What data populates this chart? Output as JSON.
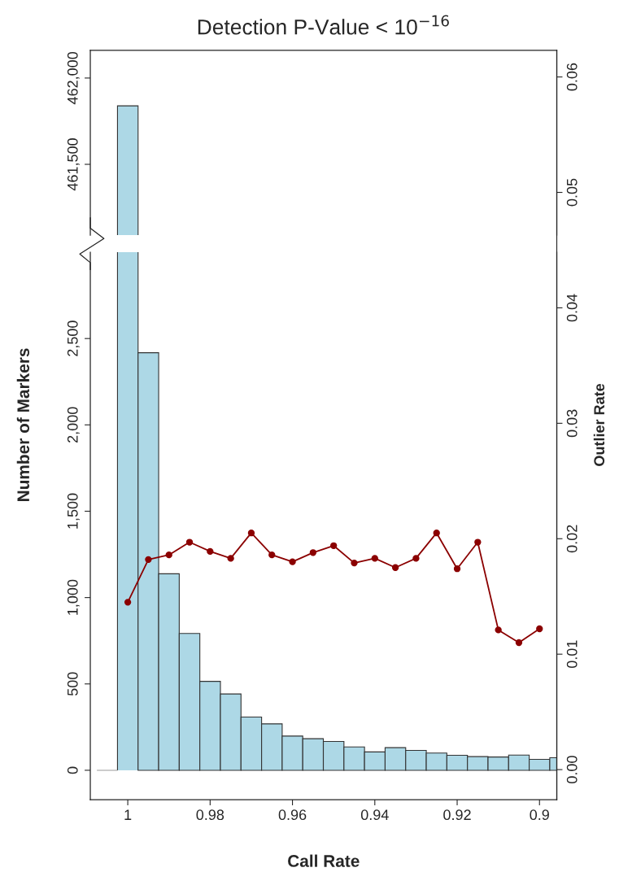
{
  "chart_data": [
    {
      "type": "histogram",
      "title": "Detection P-Value < 10$^{−16}$",
      "bins": [
        1.0075,
        1.0025,
        0.9975,
        0.9925,
        0.9875,
        0.9825,
        0.9775,
        0.9725,
        0.9675,
        0.9625,
        0.9575,
        0.9525,
        0.9475,
        0.9425,
        0.9375,
        0.9325,
        0.9275,
        0.9225,
        0.9175,
        0.9125,
        0.9075,
        0.9025,
        0.8975,
        0.8925
      ],
      "values": [
        null,
        461839,
        null,
        null,
        null,
        null,
        null,
        null,
        null,
        null,
        null,
        null,
        null,
        null,
        null,
        null,
        null,
        null,
        null,
        null,
        null,
        null,
        null
      ],
      "color": "#add8e6",
      "xlim": [
        1.0091,
        0.8958
      ],
      "ylim": [
        461090,
        462160
      ],
      "yticks": [
        {
          "value": 461500,
          "label": "461,500"
        },
        {
          "value": 462000,
          "label": "462,000"
        }
      ],
      "tick_labels": "y"
    },
    {
      "type": "histogram",
      "xlabel": "Call Rate",
      "ylabel": "Number of Markers",
      "y2label": "Outlier Rate",
      "bins": [
        1.0075,
        1.0025,
        0.9975,
        0.9925,
        0.9875,
        0.9825,
        0.9775,
        0.9725,
        0.9675,
        0.9625,
        0.9575,
        0.9525,
        0.9475,
        0.9425,
        0.9375,
        0.9325,
        0.9275,
        0.9225,
        0.9175,
        0.9125,
        0.9075,
        0.9025,
        0.8975,
        0.8925
      ],
      "values": [
        0,
        null,
        2418,
        1138,
        792,
        515,
        442,
        308,
        269,
        198,
        183,
        167,
        135,
        106,
        131,
        115,
        100,
        87,
        79,
        77,
        88,
        63,
        73
      ],
      "colors": [
        "#999999",
        "#add8e6",
        "#add8e6",
        "#add8e6",
        "#add8e6",
        "#add8e6",
        "#add8e6",
        "#add8e6",
        "#add8e6",
        "#add8e6",
        "#add8e6",
        "#add8e6",
        "#add8e6",
        "#add8e6",
        "#add8e6",
        "#add8e6",
        "#add8e6",
        "#add8e6",
        "#add8e6",
        "#add8e6",
        "#add8e6",
        "#add8e6",
        "#add8e6"
      ],
      "series": [
        {
          "type": "line",
          "axis": "y2",
          "color": "#8b0000",
          "marker": "circle",
          "x": [
            1.0,
            0.995,
            0.99,
            0.985,
            0.98,
            0.975,
            0.97,
            0.965,
            0.96,
            0.955,
            0.95,
            0.945,
            0.94,
            0.935,
            0.93,
            0.925,
            0.92,
            0.915,
            0.91,
            0.905,
            0.9
          ],
          "values": [
            0.0145,
            0.0182,
            0.0186,
            0.0197,
            0.0189,
            0.0183,
            0.0205,
            0.0186,
            0.018,
            0.0188,
            0.0194,
            0.0179,
            0.0183,
            0.0175,
            0.0183,
            0.0205,
            0.0174,
            0.0197,
            0.0121,
            0.011,
            0.0122
          ]
        }
      ],
      "xlim": [
        1.0091,
        0.8958
      ],
      "xticks": [
        1,
        0.98,
        0.96,
        0.94,
        0.92,
        0.9
      ],
      "ylim": [
        -170,
        3000
      ],
      "yticks": [
        0,
        500,
        {
          "value": 1000,
          "label": "1,000"
        },
        {
          "value": 1500,
          "label": "1,500"
        },
        {
          "value": 2000,
          "label": "2,000"
        },
        {
          "value": 2500,
          "label": "2,500"
        }
      ],
      "y2lim": [
        -0.0026,
        0.0623
      ],
      "y2ticks": [
        {
          "value": 0,
          "label": "0.00"
        },
        {
          "value": 0.01,
          "label": "0.01"
        },
        {
          "value": 0.02,
          "label": "0.02"
        },
        {
          "value": 0.03,
          "label": "0.03"
        },
        {
          "value": 0.04,
          "label": "0.04"
        },
        {
          "value": 0.05,
          "label": "0.05"
        },
        {
          "value": 0.06,
          "label": "0.06"
        }
      ]
    }
  ]
}
